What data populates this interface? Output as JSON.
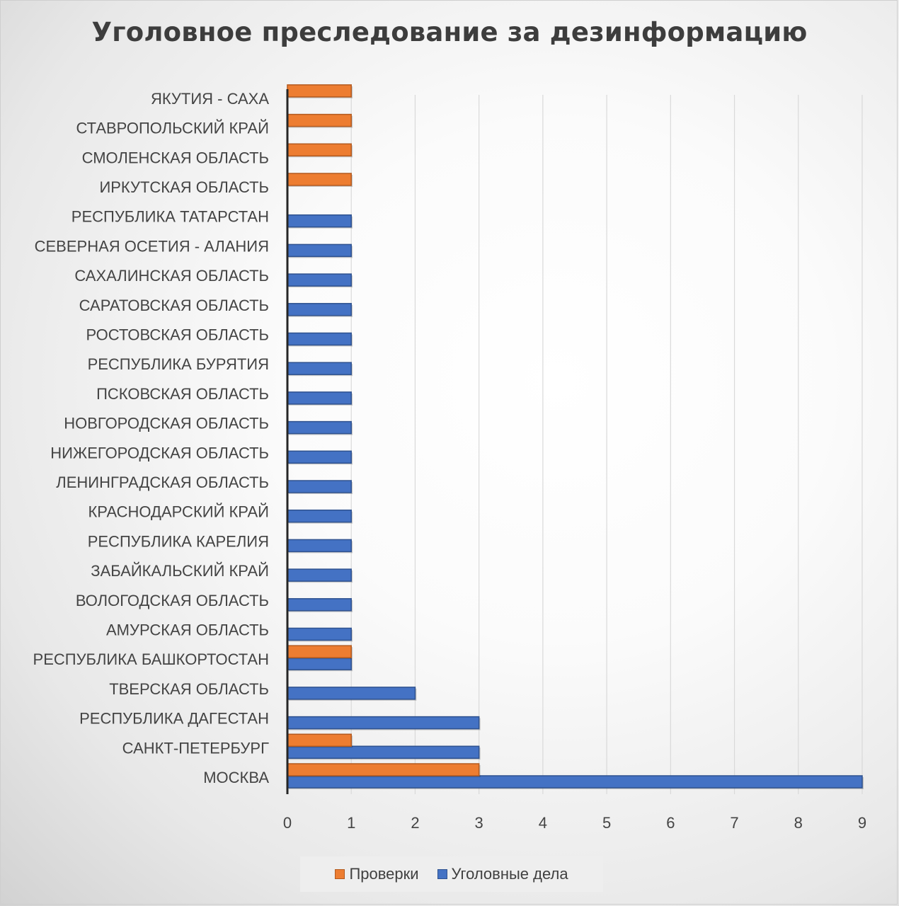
{
  "chart_data": {
    "type": "bar",
    "orientation": "horizontal",
    "title": "Уголовное преследование за дезинформацию",
    "categories": [
      "МОСКВА",
      "САНКТ-ПЕТЕРБУРГ",
      "РЕСПУБЛИКА ДАГЕСТАН",
      "ТВЕРСКАЯ ОБЛАСТЬ",
      "РЕСПУБЛИКА БАШКОРТОСТАН",
      "АМУРСКАЯ ОБЛАСТЬ",
      "ВОЛОГОДСКАЯ ОБЛАСТЬ",
      "ЗАБАЙКАЛЬСКИЙ КРАЙ",
      "РЕСПУБЛИКА КАРЕЛИЯ",
      "КРАСНОДАРСКИЙ КРАЙ",
      "ЛЕНИНГРАДСКАЯ ОБЛАСТЬ",
      "НИЖЕГОРОДСКАЯ ОБЛАСТЬ",
      "НОВГОРОДСКАЯ ОБЛАСТЬ",
      "ПСКОВСКАЯ ОБЛАСТЬ",
      "РЕСПУБЛИКА БУРЯТИЯ",
      "РОСТОВСКАЯ ОБЛАСТЬ",
      "САРАТОВСКАЯ ОБЛАСТЬ",
      "САХАЛИНСКАЯ ОБЛАСТЬ",
      "СЕВЕРНАЯ ОСЕТИЯ - АЛАНИЯ",
      "РЕСПУБЛИКА ТАТАРСТАН",
      "ИРКУТСКАЯ ОБЛАСТЬ",
      "СМОЛЕНСКАЯ ОБЛАСТЬ",
      "СТАВРОПОЛЬСКИЙ КРАЙ",
      "ЯКУТИЯ - САХА"
    ],
    "series": [
      {
        "name": "Уголовные дела",
        "color": "#4472C4",
        "values": [
          9,
          3,
          3,
          2,
          1,
          1,
          1,
          1,
          1,
          1,
          1,
          1,
          1,
          1,
          1,
          1,
          1,
          1,
          1,
          1,
          0,
          0,
          0,
          0
        ]
      },
      {
        "name": "Проверки",
        "color": "#ED7D31",
        "values": [
          3,
          1,
          0,
          0,
          1,
          0,
          0,
          0,
          0,
          0,
          0,
          0,
          0,
          0,
          0,
          0,
          0,
          0,
          0,
          0,
          1,
          1,
          1,
          1
        ]
      }
    ],
    "xlim": [
      0,
      9
    ],
    "xticks": [
      "0",
      "1",
      "2",
      "3",
      "4",
      "5",
      "6",
      "7",
      "8",
      "9"
    ],
    "grid": true,
    "legend_position": "bottom",
    "legend": [
      "Проверки",
      "Уголовные дела"
    ]
  }
}
